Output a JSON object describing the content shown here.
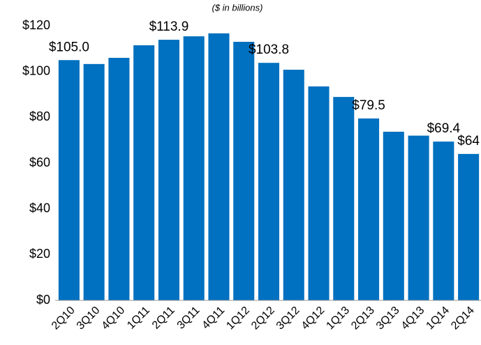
{
  "chart_data": {
    "type": "bar",
    "subtitle": "($ in billions)",
    "categories": [
      "2Q10",
      "3Q10",
      "4Q10",
      "1Q11",
      "2Q11",
      "3Q11",
      "4Q11",
      "1Q12",
      "2Q12",
      "3Q12",
      "4Q12",
      "1Q13",
      "2Q13",
      "3Q13",
      "4Q13",
      "1Q14",
      "2Q14"
    ],
    "values": [
      105.0,
      103.3,
      106.0,
      111.5,
      113.9,
      115.4,
      116.7,
      113.0,
      103.8,
      100.8,
      93.5,
      88.9,
      79.5,
      73.7,
      72.0,
      69.4,
      64
    ],
    "value_labels": [
      "$105.0",
      null,
      null,
      null,
      "$113.9",
      null,
      null,
      null,
      "$103.8",
      null,
      null,
      null,
      "$79.5",
      null,
      null,
      "$69.4",
      "$64"
    ],
    "color": "#0070c0",
    "ylim": [
      0,
      120
    ],
    "yticks": [
      {
        "value": 0,
        "label": "$0"
      },
      {
        "value": 20,
        "label": "$20"
      },
      {
        "value": 40,
        "label": "$40"
      },
      {
        "value": 60,
        "label": "$60"
      },
      {
        "value": 80,
        "label": "$80"
      },
      {
        "value": 100,
        "label": "$100"
      },
      {
        "value": 120,
        "label": "$120"
      }
    ],
    "grid": false
  }
}
